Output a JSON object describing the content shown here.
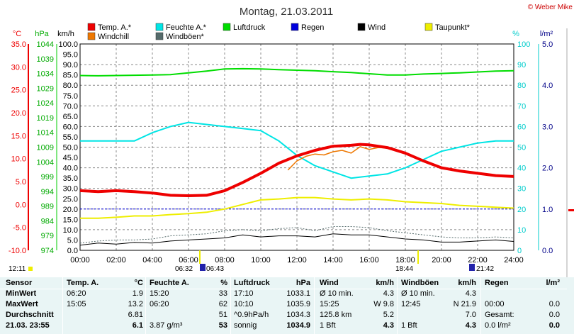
{
  "title": "Montag, 21.03.2011",
  "copyright": "© Weber Mike",
  "colors": {
    "temp": "#ee0000",
    "humidity": "#00e5e5",
    "pressure": "#00dd00",
    "rain": "#0000dd",
    "wind": "#000000",
    "dewpoint": "#eeee00",
    "windchill": "#ee7700",
    "gust": "#556b6b",
    "table_bg": "#e9f5f5"
  },
  "axes": {
    "temp": {
      "unit": "°C",
      "ticks": [
        "35.0",
        "30.0",
        "25.0",
        "20.0",
        "15.0",
        "10.0",
        "5.0",
        "0.0",
        "-5.0",
        "-10.0"
      ],
      "range": [
        -10,
        35
      ]
    },
    "pressure": {
      "unit": "hPa",
      "ticks": [
        "1044",
        "1039",
        "1034",
        "1029",
        "1024",
        "1019",
        "1014",
        "1009",
        "1004",
        "999",
        "994",
        "989",
        "984",
        "979",
        "974"
      ],
      "range": [
        974,
        1044
      ]
    },
    "wind": {
      "unit": "km/h",
      "ticks": [
        "100.0",
        "95.0",
        "90.0",
        "85.0",
        "80.0",
        "75.0",
        "70.0",
        "65.0",
        "60.0",
        "55.0",
        "50.0",
        "45.0",
        "40.0",
        "35.0",
        "30.0",
        "25.0",
        "20.0",
        "15.0",
        "10.0",
        "5.0",
        "0.0"
      ],
      "range": [
        0,
        100
      ]
    },
    "humidity": {
      "unit": "%",
      "ticks": [
        "100",
        "90",
        "80",
        "70",
        "60",
        "50",
        "40",
        "30",
        "20",
        "10",
        "0"
      ],
      "range": [
        0,
        100
      ]
    },
    "rain": {
      "unit": "l/m²",
      "ticks": [
        "5.0",
        "4.0",
        "3.0",
        "2.0",
        "1.0",
        "0.0"
      ],
      "range": [
        0,
        5
      ]
    },
    "x_ticks": [
      "00:00",
      "02:00",
      "04:00",
      "06:00",
      "08:00",
      "10:00",
      "12:00",
      "14:00",
      "16:00",
      "18:00",
      "20:00",
      "22:00",
      "24:00"
    ]
  },
  "legend": [
    {
      "label": "Temp. A.*",
      "color": "#ee0000"
    },
    {
      "label": "Feuchte A.*",
      "color": "#00e5e5"
    },
    {
      "label": "Luftdruck",
      "color": "#00dd00"
    },
    {
      "label": "Regen",
      "color": "#0000dd"
    },
    {
      "label": "Wind",
      "color": "#000000"
    },
    {
      "label": "Taupunkt*",
      "color": "#eeee00"
    },
    {
      "label": "Windchill",
      "color": "#ee7700"
    },
    {
      "label": "Windböen*",
      "color": "#556b6b"
    }
  ],
  "sun_labels": {
    "rise_a": "06:32",
    "rise_b": "06:43",
    "set_a": "18:44",
    "set_b": "21:42",
    "time_left": "12:11"
  },
  "chart_data": {
    "type": "line",
    "x_unit": "hour of day",
    "series": [
      {
        "name": "Temp. A.*",
        "axis": "temp",
        "x": [
          0,
          1,
          2,
          3,
          4,
          5,
          6,
          7,
          8,
          9,
          10,
          11,
          12,
          13,
          14,
          15,
          15.5,
          16,
          17,
          18,
          19,
          20,
          21,
          22,
          23,
          24
        ],
        "y": [
          3.0,
          2.8,
          3.0,
          2.8,
          2.5,
          2.0,
          1.9,
          2.0,
          3.0,
          4.8,
          6.8,
          9.0,
          10.6,
          11.8,
          12.7,
          12.9,
          13.1,
          13.0,
          12.4,
          11.2,
          9.5,
          8.0,
          7.3,
          6.8,
          6.3,
          6.1
        ]
      },
      {
        "name": "Feuchte A.*",
        "axis": "humidity",
        "x": [
          0,
          1,
          2,
          3,
          4,
          5,
          6,
          7,
          8,
          9,
          10,
          11,
          12,
          13,
          14,
          15,
          16,
          17,
          18,
          19,
          20,
          21,
          22,
          23,
          24
        ],
        "y": [
          53,
          53,
          53,
          53,
          57,
          60,
          62,
          61,
          60,
          59,
          58,
          53,
          46,
          41,
          38,
          35,
          36,
          37,
          40,
          44,
          48,
          50,
          52,
          53,
          53
        ]
      },
      {
        "name": "Luftdruck",
        "axis": "pressure",
        "x": [
          0,
          1,
          2,
          3,
          4,
          5,
          6,
          7,
          8,
          9,
          10,
          11,
          12,
          13,
          14,
          15,
          16,
          17,
          18,
          19,
          20,
          21,
          22,
          23,
          24
        ],
        "y": [
          1033.3,
          1033.2,
          1033.3,
          1033.4,
          1033.5,
          1033.6,
          1034.2,
          1034.8,
          1035.5,
          1035.6,
          1035.5,
          1035.3,
          1035.1,
          1034.9,
          1034.6,
          1034.3,
          1033.9,
          1033.5,
          1033.5,
          1033.8,
          1034.0,
          1034.2,
          1034.5,
          1034.8,
          1034.9
        ]
      },
      {
        "name": "Taupunkt*",
        "axis": "temp",
        "x": [
          0,
          1,
          2,
          3,
          4,
          5,
          6,
          7,
          8,
          9,
          10,
          11,
          12,
          13,
          14,
          15,
          16,
          17,
          18,
          19,
          20,
          21,
          22,
          23,
          24
        ],
        "y": [
          -3.0,
          -3.0,
          -2.8,
          -2.5,
          -2.5,
          -2.2,
          -2.0,
          -1.7,
          -1.0,
          0.0,
          1.0,
          1.2,
          1.5,
          1.5,
          1.2,
          1.0,
          1.2,
          1.0,
          0.6,
          0.4,
          0.2,
          -0.2,
          -0.4,
          -0.6,
          -0.8
        ]
      },
      {
        "name": "Wind",
        "axis": "wind",
        "x": [
          0,
          1,
          2,
          3,
          4,
          5,
          6,
          7,
          8,
          9,
          10,
          11,
          12,
          13,
          14,
          15,
          16,
          17,
          18,
          19,
          20,
          21,
          22,
          23,
          24
        ],
        "y": [
          2.5,
          3.5,
          3.0,
          3.8,
          3.5,
          4.5,
          5.0,
          5.5,
          6.0,
          7.5,
          6.5,
          7.0,
          7.0,
          6.5,
          8.0,
          7.5,
          7.5,
          6.5,
          5.5,
          5.0,
          4.0,
          4.0,
          4.5,
          5.0,
          4.3
        ]
      },
      {
        "name": "Windböen*",
        "axis": "wind",
        "x": [
          0,
          1,
          2,
          3,
          4,
          5,
          6,
          7,
          8,
          9,
          10,
          11,
          12,
          13,
          14,
          15,
          16,
          17,
          18,
          19,
          20,
          21,
          22,
          23,
          24
        ],
        "y": [
          3.5,
          4.5,
          5.0,
          5.0,
          5.5,
          7.0,
          7.5,
          8.0,
          9.5,
          10.0,
          9.5,
          10.5,
          11.0,
          9.5,
          11.5,
          11.5,
          11.0,
          9.5,
          8.5,
          7.5,
          6.5,
          6.0,
          6.0,
          6.5,
          6.0
        ]
      },
      {
        "name": "Windchill",
        "axis": "temp",
        "x": [
          11.5,
          12,
          12.5,
          13,
          13.5,
          14,
          14.5,
          15,
          15.5,
          16,
          16.5,
          17
        ],
        "y": [
          7.5,
          9.5,
          10.5,
          11.0,
          10.8,
          11.5,
          11.8,
          11.2,
          12.6,
          12.0,
          12.4,
          12.3
        ]
      },
      {
        "name": "Regen",
        "axis": "rain",
        "x": [],
        "y": []
      }
    ],
    "reference_line": {
      "axis": "rain",
      "value": 1.0
    },
    "grid": true
  },
  "table": {
    "sensor": {
      "header": "Sensor",
      "rows": [
        "MinWert",
        "MaxWert",
        "Durchschnitt",
        "21.03. 23:55"
      ]
    },
    "temp": {
      "header": "Temp. A.",
      "unit": "°C",
      "t": [
        "06:20",
        "15:05",
        "",
        ""
      ],
      "v": [
        "1.9",
        "13.2",
        "6.81",
        "6.1"
      ]
    },
    "humidity": {
      "header": "Feuchte A.",
      "unit": "%",
      "t": [
        "15:20",
        "06:20",
        "",
        "3.87 g/m³"
      ],
      "v": [
        "33",
        "62",
        "51",
        "53"
      ]
    },
    "pressure": {
      "header": "Luftdruck",
      "unit": "hPa",
      "t": [
        "17:10",
        "10:10",
        "^0.9hPa/h",
        "sonnig"
      ],
      "v": [
        "1033.1",
        "1035.9",
        "1034.3",
        "1034.9"
      ]
    },
    "wind": {
      "header": "Wind",
      "unit": "km/h",
      "t": [
        "Ø 10 min.",
        "15:25",
        "125.8 km",
        "1 Bft"
      ],
      "v": [
        "4.3",
        "W 9.8",
        "5.2",
        "4.3"
      ]
    },
    "gust": {
      "header": "Windböen",
      "unit": "km/h",
      "t": [
        "Ø 10 min.",
        "12:45",
        "",
        "1 Bft"
      ],
      "v": [
        "4.3",
        "N 21.9",
        "7.0",
        "4.3"
      ]
    },
    "rain": {
      "header": "Regen",
      "unit": "l/m²",
      "t": [
        "",
        "00:00",
        "Gesamt:",
        "0.0 l/m²"
      ],
      "v": [
        "",
        "0.0",
        "0.0",
        "0.0"
      ]
    }
  }
}
